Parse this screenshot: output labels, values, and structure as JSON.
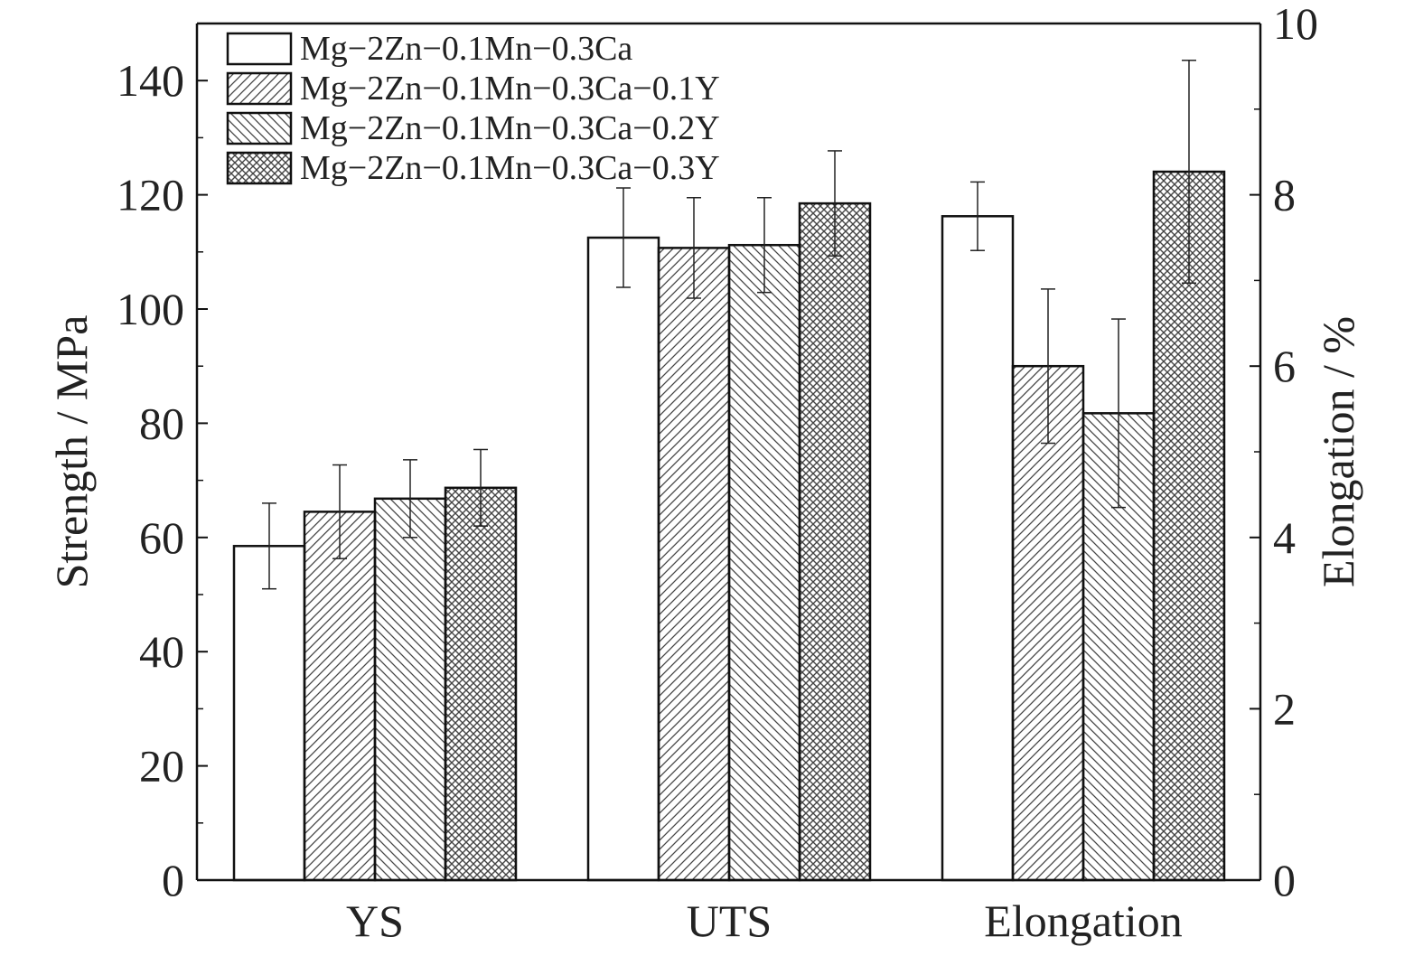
{
  "chart_data": {
    "type": "bar",
    "categories": [
      "YS",
      "UTS",
      "Elongation"
    ],
    "left_axis": {
      "label": "Strength / MPa",
      "ylim": [
        0,
        150
      ],
      "ticks": [
        0,
        20,
        40,
        60,
        80,
        100,
        120,
        140
      ]
    },
    "right_axis": {
      "label": "Elongation / %",
      "ylim": [
        0,
        10
      ],
      "ticks": [
        0,
        2,
        4,
        6,
        8,
        10
      ]
    },
    "series": [
      {
        "name": "Mg−2Zn−0.1Mn−0.3Ca",
        "pattern": "none",
        "values": [
          58.5,
          112.5,
          7.75
        ],
        "errors": [
          7.5,
          8.7,
          0.4
        ]
      },
      {
        "name": "Mg−2Zn−0.1Mn−0.3Ca−0.1Y",
        "pattern": "diagonal-forward",
        "values": [
          64.5,
          110.7,
          6.0
        ],
        "errors": [
          8.2,
          8.8,
          0.9
        ]
      },
      {
        "name": "Mg−2Zn−0.1Mn−0.3Ca−0.2Y",
        "pattern": "diagonal-backward",
        "values": [
          66.8,
          111.2,
          5.45
        ],
        "errors": [
          6.8,
          8.3,
          1.1
        ]
      },
      {
        "name": "Mg−2Zn−0.1Mn−0.3Ca−0.3Y",
        "pattern": "crosshatch",
        "values": [
          68.7,
          118.5,
          8.27
        ],
        "errors": [
          6.7,
          9.2,
          1.3
        ]
      }
    ],
    "axis_of_category": [
      "left",
      "left",
      "right"
    ],
    "legend_position": "top-left",
    "grid": false,
    "colors": {
      "bar_stroke": "#111111",
      "hatch": "#444444",
      "fill": "#ffffff"
    }
  }
}
